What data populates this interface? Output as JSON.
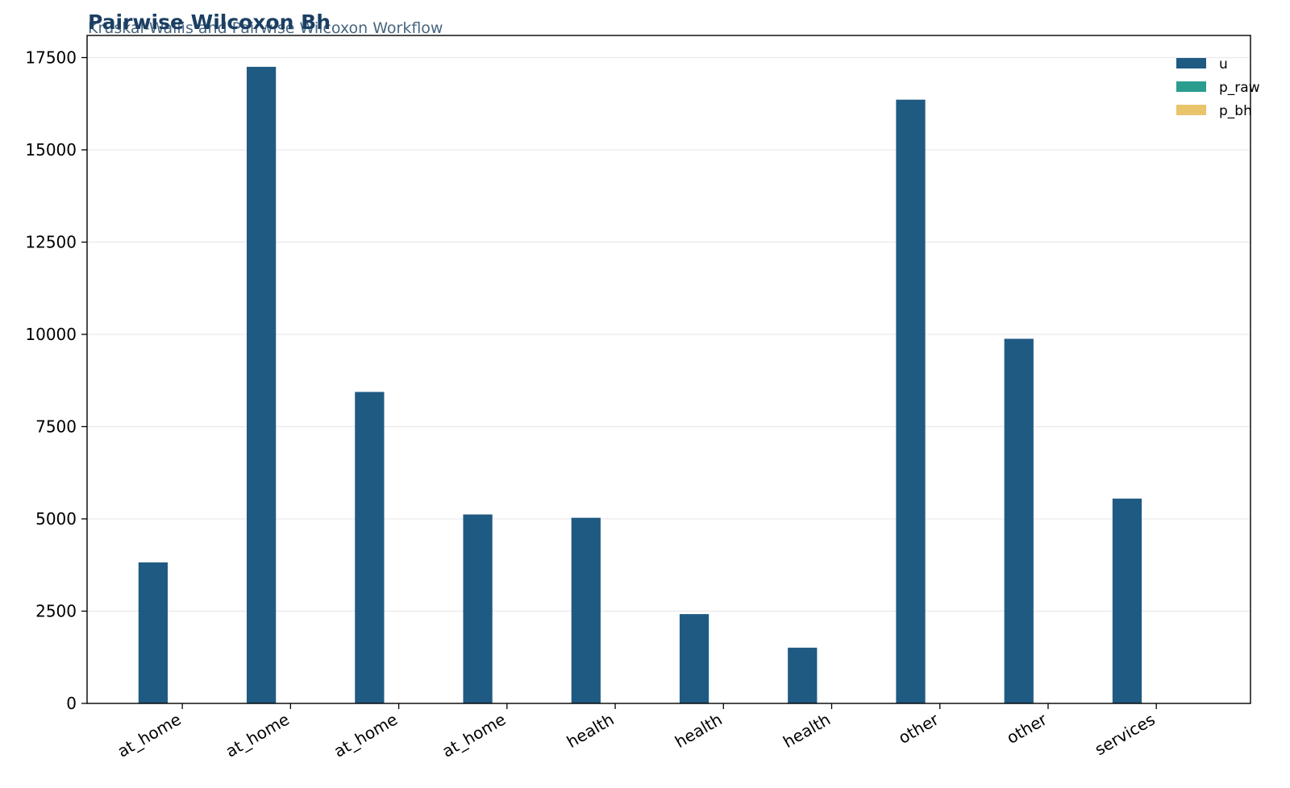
{
  "chart_data": {
    "type": "bar",
    "title": "Pairwise Wilcoxon Bh",
    "subtitle": "Kruskal-Wallis and Pairwise Wilcoxon Workflow",
    "xlabel": "",
    "ylabel": "",
    "categories": [
      "at_home",
      "at_home",
      "at_home",
      "at_home",
      "health",
      "health",
      "health",
      "other",
      "other",
      "services"
    ],
    "series": [
      {
        "name": "u",
        "color": "#1f5a83",
        "values": [
          3820,
          17250,
          8440,
          5120,
          5030,
          2420,
          1510,
          16360,
          9880,
          5550
        ]
      },
      {
        "name": "p_raw",
        "color": "#2a9d8f",
        "values": [
          0,
          0,
          0,
          0,
          0,
          0,
          0,
          0,
          0,
          0
        ]
      },
      {
        "name": "p_bh",
        "color": "#e9c46a",
        "values": [
          0,
          0,
          0,
          0,
          0,
          0,
          0,
          0,
          0,
          0
        ]
      }
    ],
    "ylim": [
      0,
      18100
    ],
    "yticks": [
      0,
      2500,
      5000,
      7500,
      10000,
      12500,
      15000,
      17500
    ],
    "grid": true,
    "legend_position": "top-right"
  }
}
